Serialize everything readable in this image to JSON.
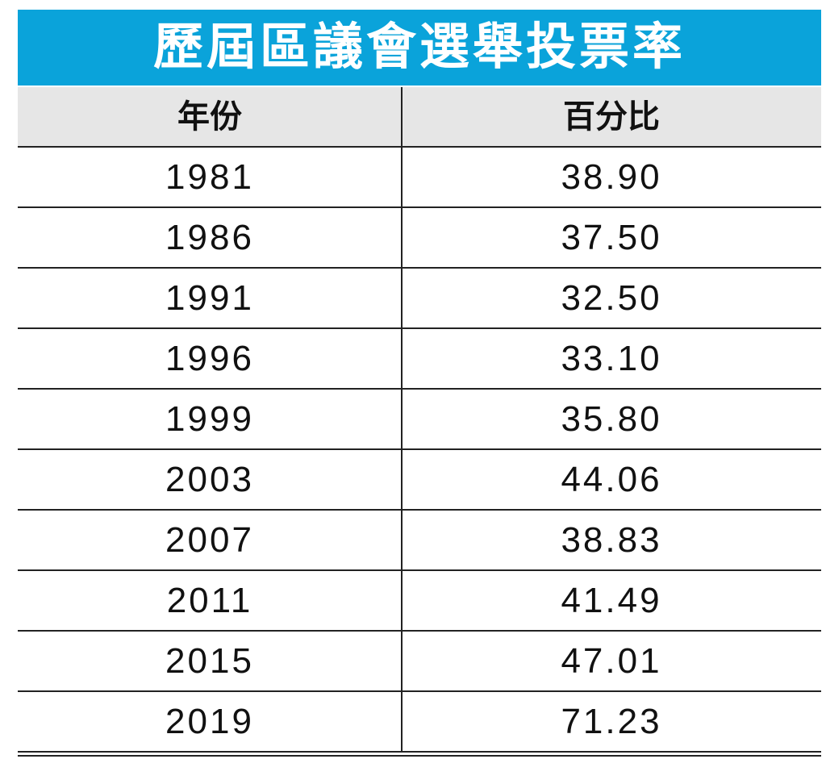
{
  "table": {
    "title": "歷屆區議會選舉投票率",
    "header": [
      "年份",
      "百分比"
    ],
    "rows": [
      [
        "1981",
        "38.90"
      ],
      [
        "1986",
        "37.50"
      ],
      [
        "1991",
        "32.50"
      ],
      [
        "1996",
        "33.10"
      ],
      [
        "1999",
        "35.80"
      ],
      [
        "2003",
        "44.06"
      ],
      [
        "2007",
        "38.83"
      ],
      [
        "2011",
        "41.49"
      ],
      [
        "2015",
        "47.01"
      ],
      [
        "2019",
        "71.23"
      ]
    ]
  }
}
